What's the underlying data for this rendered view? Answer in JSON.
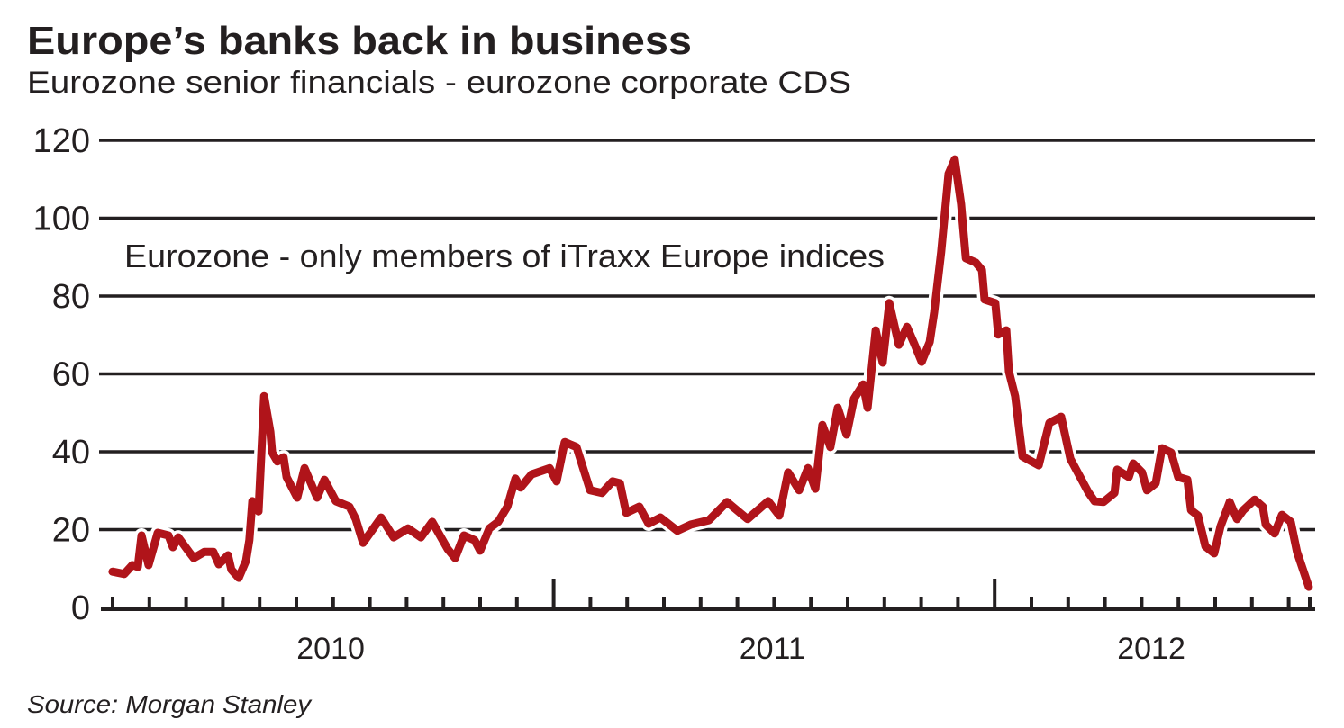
{
  "chart_data": {
    "type": "line",
    "title": "Europe’s banks back in business",
    "subtitle": "Eurozone senior financials - eurozone corporate CDS",
    "annotation": "Eurozone - only members of iTraxx Europe indices",
    "source": "Source: Morgan Stanley",
    "xlabel": "",
    "ylabel": "",
    "x_unit": "months since start of 2010",
    "xlim": [
      0,
      32.7
    ],
    "ylim": [
      0,
      120
    ],
    "yticks": [
      0,
      20,
      40,
      60,
      80,
      100,
      120
    ],
    "xtick_labels": [
      {
        "label": "2010",
        "center": 6
      },
      {
        "label": "2011",
        "center": 18
      },
      {
        "label": "2012",
        "center": 28.3
      }
    ],
    "grid": true,
    "line_color": "#b0141a",
    "series": [
      {
        "name": "Eurozone senior financials - eurozone corporate CDS",
        "x": [
          0.07,
          0.39,
          0.61,
          0.76,
          0.86,
          1.05,
          1.3,
          1.59,
          1.71,
          1.86,
          2.15,
          2.28,
          2.57,
          2.81,
          2.96,
          3.21,
          3.3,
          3.5,
          3.7,
          3.79,
          3.87,
          4.04,
          4.19,
          4.36,
          4.41,
          4.55,
          4.72,
          4.8,
          5.09,
          5.29,
          5.63,
          5.83,
          6.14,
          6.51,
          6.68,
          6.88,
          7.37,
          7.71,
          8.1,
          8.45,
          8.76,
          9.18,
          9.38,
          9.62,
          9.91,
          10.06,
          10.31,
          10.55,
          10.8,
          11.02,
          11.16,
          11.46,
          11.95,
          12.14,
          12.36,
          12.68,
          13.05,
          13.37,
          13.66,
          13.86,
          14.03,
          14.39,
          14.64,
          14.96,
          15.42,
          15.79,
          16.28,
          16.77,
          17.33,
          17.89,
          18.19,
          18.43,
          18.73,
          18.97,
          19.17,
          19.36,
          19.58,
          19.78,
          20.02,
          20.22,
          20.47,
          20.59,
          20.81,
          21.0,
          21.18,
          21.44,
          21.66,
          21.86,
          22.06,
          22.28,
          22.4,
          22.59,
          22.79,
          22.96,
          23.13,
          23.26,
          23.53,
          23.7,
          23.77,
          24.06,
          24.14,
          24.36,
          24.43,
          24.6,
          24.8,
          25.24,
          25.53,
          25.85,
          26.1,
          26.59,
          26.76,
          27.0,
          27.3,
          27.37,
          27.69,
          27.81,
          28.05,
          28.18,
          28.42,
          28.59,
          28.84,
          29.03,
          29.28,
          29.38,
          29.57,
          29.77,
          30.01,
          30.18,
          30.43,
          30.63,
          30.8,
          31.11,
          31.33,
          31.41,
          31.65,
          31.85,
          32.09,
          32.26,
          32.58
        ],
        "y": [
          9.2,
          8.6,
          10.9,
          10.4,
          18.5,
          10.9,
          19.2,
          18.5,
          15.5,
          18.0,
          14.3,
          12.7,
          14.3,
          14.3,
          11.1,
          13.4,
          9.7,
          7.6,
          12.0,
          17.3,
          27.3,
          24.7,
          54.3,
          45.1,
          39.8,
          37.5,
          38.6,
          33.5,
          28.2,
          35.8,
          28.2,
          32.8,
          27.3,
          25.9,
          22.7,
          16.6,
          23.1,
          18.0,
          20.3,
          18.0,
          22.0,
          15.0,
          12.7,
          18.5,
          17.3,
          14.6,
          20.3,
          22.0,
          25.9,
          33.1,
          30.8,
          34.2,
          35.8,
          32.4,
          42.5,
          41.2,
          30.1,
          29.4,
          32.4,
          31.9,
          24.3,
          25.9,
          21.5,
          23.1,
          19.7,
          21.3,
          22.4,
          27.1,
          22.7,
          27.3,
          23.6,
          34.7,
          30.1,
          35.8,
          30.5,
          46.9,
          41.2,
          51.3,
          44.4,
          53.6,
          57.3,
          51.3,
          71.2,
          62.9,
          78.2,
          67.5,
          72.1,
          67.7,
          63.1,
          68.2,
          75.8,
          91.3,
          111.4,
          115.1,
          103.6,
          89.7,
          88.6,
          86.7,
          79.1,
          78.2,
          70.1,
          71.2,
          60.6,
          54.3,
          38.8,
          36.5,
          47.4,
          49.0,
          38.2,
          29.6,
          27.3,
          27.1,
          29.4,
          35.4,
          33.5,
          37.0,
          34.7,
          30.1,
          31.9,
          40.9,
          39.8,
          33.5,
          32.8,
          25.0,
          23.6,
          15.7,
          13.9,
          20.8,
          27.1,
          22.7,
          25.0,
          27.7,
          25.9,
          21.3,
          19.0,
          23.8,
          22.0,
          14.3,
          5.3
        ]
      }
    ]
  }
}
